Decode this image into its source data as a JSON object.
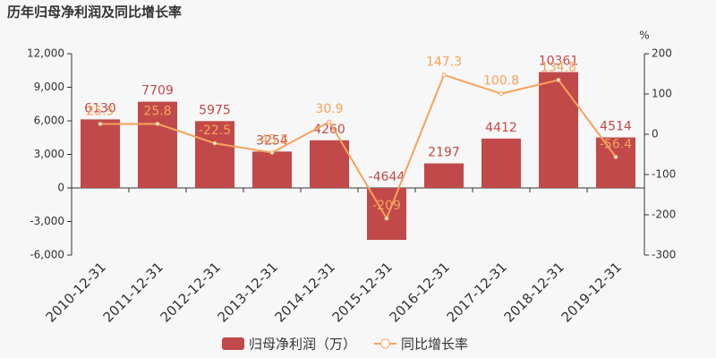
{
  "chart_data": {
    "type": "bar",
    "title": "历年归母净利润及同比增长率",
    "y2_unit": "%",
    "categories": [
      "2010-12-31",
      "2011-12-31",
      "2012-12-31",
      "2013-12-31",
      "2014-12-31",
      "2015-12-31",
      "2016-12-31",
      "2017-12-31",
      "2018-12-31",
      "2019-12-31"
    ],
    "series": [
      {
        "name": "归母净利润（万）",
        "type": "bar",
        "color": "#c1494a",
        "values": [
          6130,
          7709,
          5975,
          3254,
          4260,
          -4644,
          2197,
          4412,
          10361,
          4514
        ]
      },
      {
        "name": "同比增长率",
        "type": "line",
        "axis": "y2",
        "color": "#f5a35b",
        "values": [
          25.5,
          25.8,
          -22.5,
          -45.5,
          30.9,
          -209,
          147.3,
          100.8,
          134.8,
          -56.4
        ]
      }
    ],
    "ylim": [
      -6000,
      12000
    ],
    "yticks": [
      {
        "value": -6000,
        "label": "-6,000"
      },
      {
        "value": -3000,
        "label": "-3,000"
      },
      0,
      {
        "value": 3000,
        "label": "3,000"
      },
      {
        "value": 6000,
        "label": "6,000"
      },
      {
        "value": 9000,
        "label": "9,000"
      },
      {
        "value": 12000,
        "label": "12,000"
      }
    ],
    "y2lim": [
      -300,
      200
    ],
    "y2ticks": [
      -300,
      -200,
      -100,
      0,
      100,
      200
    ],
    "grid": false
  }
}
